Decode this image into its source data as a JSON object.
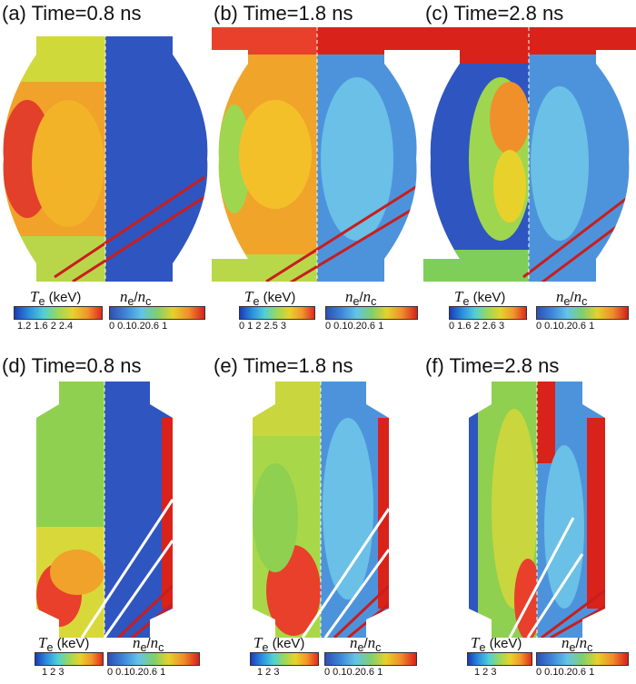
{
  "panels": [
    {
      "id": "a",
      "title": "(a) Time=0.8 ns",
      "te_ticks": "1.2  1.6   2   2.4",
      "ne_ticks": "0  0.10.20.6  1"
    },
    {
      "id": "b",
      "title": "(b) Time=1.8 ns",
      "te_ticks": "0    1    2  2.5  3",
      "ne_ticks": "0  0.10.20.6  1"
    },
    {
      "id": "c",
      "title": "(c) Time=2.8 ns",
      "te_ticks": "0  1.6  2  2.6  3",
      "ne_ticks": "0  0.10.20.6  1"
    },
    {
      "id": "d",
      "title": "(d) Time=0.8 ns",
      "te_ticks": "1    2    3",
      "ne_ticks": "0  0.10.20.6  1"
    },
    {
      "id": "e",
      "title": "(e) Time=1.8 ns",
      "te_ticks": "1    2    3",
      "ne_ticks": "0  0.10.20.6  1"
    },
    {
      "id": "f",
      "title": "(f) Time=2.8 ns",
      "te_ticks": "1    2    3",
      "ne_ticks": "0  0.10.20.6  1"
    }
  ],
  "colorbar": {
    "te_symbol": "T",
    "te_sub": "e",
    "te_unit": " (keV)",
    "ne_symbol_n1": "n",
    "ne_sub1": "e",
    "ne_slash": "/",
    "ne_symbol_n2": "n",
    "ne_sub2": "c"
  }
}
